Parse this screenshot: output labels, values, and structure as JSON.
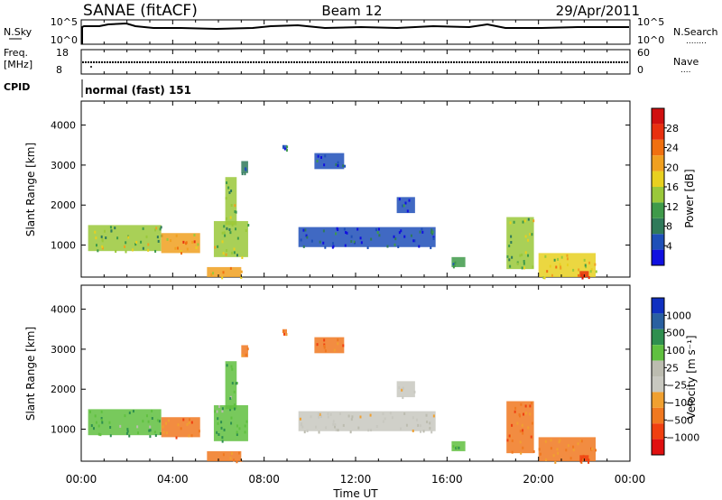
{
  "header": {
    "station": "SANAE (fitACF)",
    "beam": "Beam 12",
    "date": "29/Apr/2011"
  },
  "params": {
    "nsky_label": "N.Sky",
    "nsearch_label": "N.Search",
    "nsearch_marker": "........",
    "noise_ticks": [
      "10^5",
      "10^0"
    ],
    "freq_label_1": "Freq.",
    "freq_label_2": "[MHz]",
    "freq_ticks": [
      "18",
      "8"
    ],
    "nave_ticks": [
      "60",
      "0"
    ],
    "nave_label": "Nave",
    "nave_marker": "....",
    "cpid_label": "CPID",
    "cpid_value": "normal (fast) 151"
  },
  "colors": {
    "power": [
      "#1010e0",
      "#1e4fb8",
      "#2f7a5a",
      "#3f9a4a",
      "#9ac83a",
      "#e8d020",
      "#f0a020",
      "#f07010",
      "#e83010",
      "#d01010"
    ],
    "velocity": [
      "#e01010",
      "#f04010",
      "#f07820",
      "#f0a030",
      "#c8c8c0",
      "#bcbcb0",
      "#60c040",
      "#2f8f4f",
      "#2a60a0",
      "#1030c0"
    ]
  },
  "chart_data": [
    {
      "type": "heatmap",
      "name": "power",
      "ylabel": "Slant Range [km]",
      "xlabel": "Time UT",
      "x_ticks": [
        "00:00",
        "04:00",
        "08:00",
        "12:00",
        "16:00",
        "20:00",
        "00:00"
      ],
      "x_range_hours": [
        0,
        24
      ],
      "y_ticks": [
        1000,
        2000,
        3000,
        4000
      ],
      "ylim": [
        200,
        4600
      ],
      "colorbar": {
        "label": "Power [dB]",
        "ticks": [
          "4",
          "8",
          "12",
          "16",
          "20",
          "24",
          "28"
        ],
        "range": [
          0,
          30
        ]
      },
      "echo_regions": [
        {
          "t0": 0.3,
          "t1": 3.5,
          "r0": 850,
          "r1": 1500,
          "value": 12
        },
        {
          "t0": 3.5,
          "t1": 5.2,
          "r0": 800,
          "r1": 1300,
          "value": 18
        },
        {
          "t0": 5.5,
          "t1": 7.0,
          "r0": 200,
          "r1": 450,
          "value": 20
        },
        {
          "t0": 5.8,
          "t1": 7.3,
          "r0": 700,
          "r1": 1600,
          "value": 14
        },
        {
          "t0": 6.3,
          "t1": 6.8,
          "r0": 1500,
          "r1": 2700,
          "value": 12
        },
        {
          "t0": 7.0,
          "t1": 7.3,
          "r0": 2800,
          "r1": 3100,
          "value": 6
        },
        {
          "t0": 8.8,
          "t1": 9.0,
          "r0": 3400,
          "r1": 3500,
          "value": 4
        },
        {
          "t0": 9.5,
          "t1": 15.5,
          "r0": 950,
          "r1": 1450,
          "value": 5
        },
        {
          "t0": 10.2,
          "t1": 11.5,
          "r0": 2900,
          "r1": 3300,
          "value": 4
        },
        {
          "t0": 13.8,
          "t1": 14.6,
          "r0": 1800,
          "r1": 2200,
          "value": 4
        },
        {
          "t0": 16.2,
          "t1": 16.8,
          "r0": 450,
          "r1": 700,
          "value": 10
        },
        {
          "t0": 18.6,
          "t1": 19.8,
          "r0": 400,
          "r1": 1700,
          "value": 12
        },
        {
          "t0": 20.0,
          "t1": 22.5,
          "r0": 200,
          "r1": 800,
          "value": 16
        },
        {
          "t0": 21.8,
          "t1": 22.2,
          "r0": 200,
          "r1": 350,
          "value": 24
        }
      ]
    },
    {
      "type": "heatmap",
      "name": "velocity",
      "ylabel": "Slant Range [km]",
      "xlabel": "Time UT",
      "x_ticks": [
        "00:00",
        "04:00",
        "08:00",
        "12:00",
        "16:00",
        "20:00",
        "00:00"
      ],
      "x_range_hours": [
        0,
        24
      ],
      "y_ticks": [
        1000,
        2000,
        3000,
        4000
      ],
      "ylim": [
        200,
        4600
      ],
      "colorbar": {
        "label": "Velocity [m s⁻¹]",
        "ticks": [
          "1000",
          "500",
          "100",
          "25",
          "−25",
          "−100",
          "−500",
          "−1000"
        ]
      },
      "echo_regions": [
        {
          "t0": 0.3,
          "t1": 3.5,
          "r0": 850,
          "r1": 1500,
          "value": 100
        },
        {
          "t0": 3.5,
          "t1": 5.2,
          "r0": 800,
          "r1": 1300,
          "value": -100
        },
        {
          "t0": 5.5,
          "t1": 7.0,
          "r0": 200,
          "r1": 450,
          "value": -100
        },
        {
          "t0": 5.8,
          "t1": 7.3,
          "r0": 700,
          "r1": 1600,
          "value": 60
        },
        {
          "t0": 6.3,
          "t1": 6.8,
          "r0": 1500,
          "r1": 2700,
          "value": 80
        },
        {
          "t0": 7.0,
          "t1": 7.3,
          "r0": 2800,
          "r1": 3100,
          "value": -200
        },
        {
          "t0": 8.8,
          "t1": 9.0,
          "r0": 3400,
          "r1": 3500,
          "value": -200
        },
        {
          "t0": 9.5,
          "t1": 15.5,
          "r0": 950,
          "r1": 1450,
          "value": 0
        },
        {
          "t0": 10.2,
          "t1": 11.5,
          "r0": 2900,
          "r1": 3300,
          "value": -150
        },
        {
          "t0": 13.8,
          "t1": 14.6,
          "r0": 1800,
          "r1": 2200,
          "value": 0
        },
        {
          "t0": 16.2,
          "t1": 16.8,
          "r0": 450,
          "r1": 700,
          "value": 80
        },
        {
          "t0": 18.6,
          "t1": 19.8,
          "r0": 400,
          "r1": 1700,
          "value": -200
        },
        {
          "t0": 20.0,
          "t1": 22.5,
          "r0": 200,
          "r1": 800,
          "value": -300
        },
        {
          "t0": 21.8,
          "t1": 22.2,
          "r0": 200,
          "r1": 350,
          "value": -700
        }
      ]
    }
  ]
}
